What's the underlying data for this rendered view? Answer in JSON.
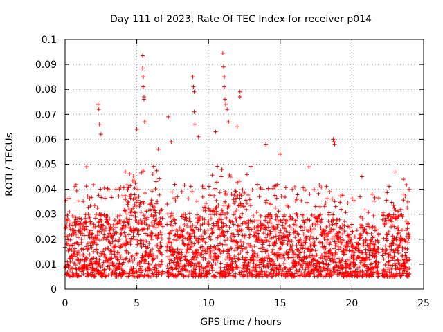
{
  "chart_data": {
    "type": "scatter",
    "title": "Day 111 of 2023, Rate Of TEC Index for receiver p014",
    "xlabel": "GPS time / hours",
    "ylabel": "ROTI / TECUs",
    "xlim": [
      0,
      25
    ],
    "ylim": [
      0,
      0.1
    ],
    "xticks": [
      0,
      5,
      10,
      15,
      20,
      25
    ],
    "yticks": [
      0,
      0.01,
      0.02,
      0.03,
      0.04,
      0.05,
      0.06,
      0.07,
      0.08,
      0.09,
      0.1
    ],
    "xtick_labels": [
      "0",
      "5",
      "10",
      "15",
      "20",
      "25"
    ],
    "ytick_labels": [
      "0",
      "0.01",
      "0.02",
      "0.03",
      "0.04",
      "0.05",
      "0.06",
      "0.07",
      "0.08",
      "0.09",
      "0.1"
    ],
    "grid": true,
    "marker": "+",
    "series_color": "#ff0000",
    "data_gaps_hours": [
      [
        6.8,
        7.1
      ],
      [
        21.9,
        22.1
      ]
    ],
    "baseline_range": [
      0.005,
      0.03
    ],
    "peaks": [
      {
        "x": 0.3,
        "y": 0.031
      },
      {
        "x": 1.5,
        "y": 0.049
      },
      {
        "x": 2.3,
        "y": 0.074
      },
      {
        "x": 2.35,
        "y": 0.072
      },
      {
        "x": 2.4,
        "y": 0.066
      },
      {
        "x": 2.5,
        "y": 0.062
      },
      {
        "x": 4.2,
        "y": 0.047
      },
      {
        "x": 5.0,
        "y": 0.064
      },
      {
        "x": 5.4,
        "y": 0.0935
      },
      {
        "x": 5.4,
        "y": 0.0885
      },
      {
        "x": 5.45,
        "y": 0.085
      },
      {
        "x": 5.45,
        "y": 0.081
      },
      {
        "x": 5.5,
        "y": 0.077
      },
      {
        "x": 5.5,
        "y": 0.076
      },
      {
        "x": 5.55,
        "y": 0.067
      },
      {
        "x": 6.5,
        "y": 0.056
      },
      {
        "x": 7.2,
        "y": 0.069
      },
      {
        "x": 7.4,
        "y": 0.059
      },
      {
        "x": 8.9,
        "y": 0.085
      },
      {
        "x": 8.95,
        "y": 0.081
      },
      {
        "x": 9.0,
        "y": 0.079
      },
      {
        "x": 9.0,
        "y": 0.071
      },
      {
        "x": 9.05,
        "y": 0.066
      },
      {
        "x": 9.3,
        "y": 0.061
      },
      {
        "x": 10.5,
        "y": 0.063
      },
      {
        "x": 11.0,
        "y": 0.0945
      },
      {
        "x": 11.05,
        "y": 0.089
      },
      {
        "x": 11.1,
        "y": 0.085
      },
      {
        "x": 11.1,
        "y": 0.081
      },
      {
        "x": 11.15,
        "y": 0.076
      },
      {
        "x": 11.2,
        "y": 0.074
      },
      {
        "x": 11.3,
        "y": 0.072
      },
      {
        "x": 11.4,
        "y": 0.067
      },
      {
        "x": 12.2,
        "y": 0.079
      },
      {
        "x": 12.2,
        "y": 0.077
      },
      {
        "x": 12.0,
        "y": 0.065
      },
      {
        "x": 14.0,
        "y": 0.058
      },
      {
        "x": 15.0,
        "y": 0.054
      },
      {
        "x": 17.0,
        "y": 0.049
      },
      {
        "x": 18.7,
        "y": 0.06
      },
      {
        "x": 18.75,
        "y": 0.059
      },
      {
        "x": 18.8,
        "y": 0.058
      },
      {
        "x": 20.7,
        "y": 0.045
      },
      {
        "x": 23.0,
        "y": 0.047
      },
      {
        "x": 23.6,
        "y": 0.044
      }
    ]
  }
}
